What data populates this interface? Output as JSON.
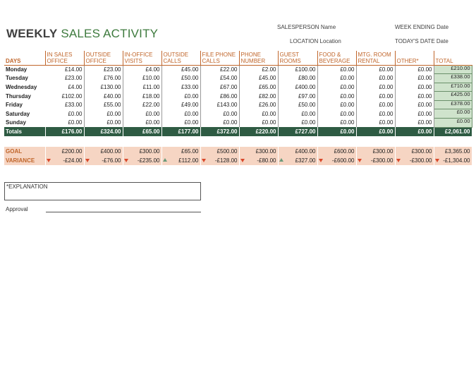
{
  "header": {
    "title_bold": "WEEKLY",
    "title_rest": "SALES ACTIVITY",
    "salesperson_label": "SALESPERSON",
    "salesperson_value": "Name",
    "week_ending_label": "WEEK ENDING",
    "week_ending_value": "Date",
    "location_label": "LOCATION",
    "location_value": "Location",
    "today_label": "TODAY'S DATE",
    "today_value": "Date"
  },
  "table": {
    "days_header": "DAYS",
    "columns": [
      "IN SALES OFFICE",
      "OUTSIDE OFFICE",
      "IN-OFFICE VISITS",
      "OUTSIDE CALLS",
      "FILE PHONE CALLS",
      "PHONE NUMBER",
      "GUEST ROOMS",
      "FOOD & BEVERAGE",
      "MTG. ROOM RENTAL",
      "OTHER*",
      "TOTAL"
    ],
    "rows": [
      {
        "day": "Monday",
        "cells": [
          "£14.00",
          "£23.00",
          "£4.00",
          "£45.00",
          "£22.00",
          "£2.00",
          "£100.00",
          "£0.00",
          "£0.00",
          "£0.00",
          "£210.00"
        ]
      },
      {
        "day": "Tuesday",
        "cells": [
          "£23.00",
          "£76.00",
          "£10.00",
          "£50.00",
          "£54.00",
          "£45.00",
          "£80.00",
          "£0.00",
          "£0.00",
          "£0.00",
          "£338.00"
        ]
      },
      {
        "day": "Wednesday",
        "cells": [
          "£4.00",
          "£130.00",
          "£11.00",
          "£33.00",
          "£67.00",
          "£65.00",
          "£400.00",
          "£0.00",
          "£0.00",
          "£0.00",
          "£710.00"
        ]
      },
      {
        "day": "Thursday",
        "cells": [
          "£102.00",
          "£40.00",
          "£18.00",
          "£0.00",
          "£86.00",
          "£82.00",
          "£97.00",
          "£0.00",
          "£0.00",
          "£0.00",
          "£425.00"
        ]
      },
      {
        "day": "Friday",
        "cells": [
          "£33.00",
          "£55.00",
          "£22.00",
          "£49.00",
          "£143.00",
          "£26.00",
          "£50.00",
          "£0.00",
          "£0.00",
          "£0.00",
          "£378.00"
        ]
      },
      {
        "day": "Saturday",
        "cells": [
          "£0.00",
          "£0.00",
          "£0.00",
          "£0.00",
          "£0.00",
          "£0.00",
          "£0.00",
          "£0.00",
          "£0.00",
          "£0.00",
          "£0.00"
        ]
      },
      {
        "day": "Sunday",
        "cells": [
          "£0.00",
          "£0.00",
          "£0.00",
          "£0.00",
          "£0.00",
          "£0.00",
          "£0.00",
          "£0.00",
          "£0.00",
          "£0.00",
          "£0.00"
        ]
      }
    ],
    "totals": {
      "label": "Totals",
      "cells": [
        "£176.00",
        "£324.00",
        "£65.00",
        "£177.00",
        "£372.00",
        "£220.00",
        "£727.00",
        "£0.00",
        "£0.00",
        "£0.00",
        "£2,061.00"
      ]
    },
    "goal": {
      "label": "GOAL",
      "cells": [
        "£200.00",
        "£400.00",
        "£300.00",
        "£65.00",
        "£500.00",
        "£300.00",
        "£400.00",
        "£600.00",
        "£300.00",
        "£300.00",
        "£3,365.00"
      ]
    },
    "variance": {
      "label": "VARIANCE",
      "cells": [
        "-£24.00",
        "-£76.00",
        "-£235.00",
        "£112.00",
        "-£128.00",
        "-£80.00",
        "£327.00",
        "-£600.00",
        "-£300.00",
        "-£300.00",
        "-£1,304.00"
      ],
      "indicators": [
        "down",
        "down",
        "down",
        "up",
        "down",
        "down",
        "up",
        "down",
        "down",
        "down",
        "down"
      ]
    }
  },
  "footer": {
    "explanation_label": "*EXPLANATION",
    "approval_label": "Approval"
  },
  "colors": {
    "accent_orange": "#c0652a",
    "totals_green": "#2e5b43",
    "total_col_green": "#cfe3cc",
    "goal_peach": "#f6d5c3"
  }
}
